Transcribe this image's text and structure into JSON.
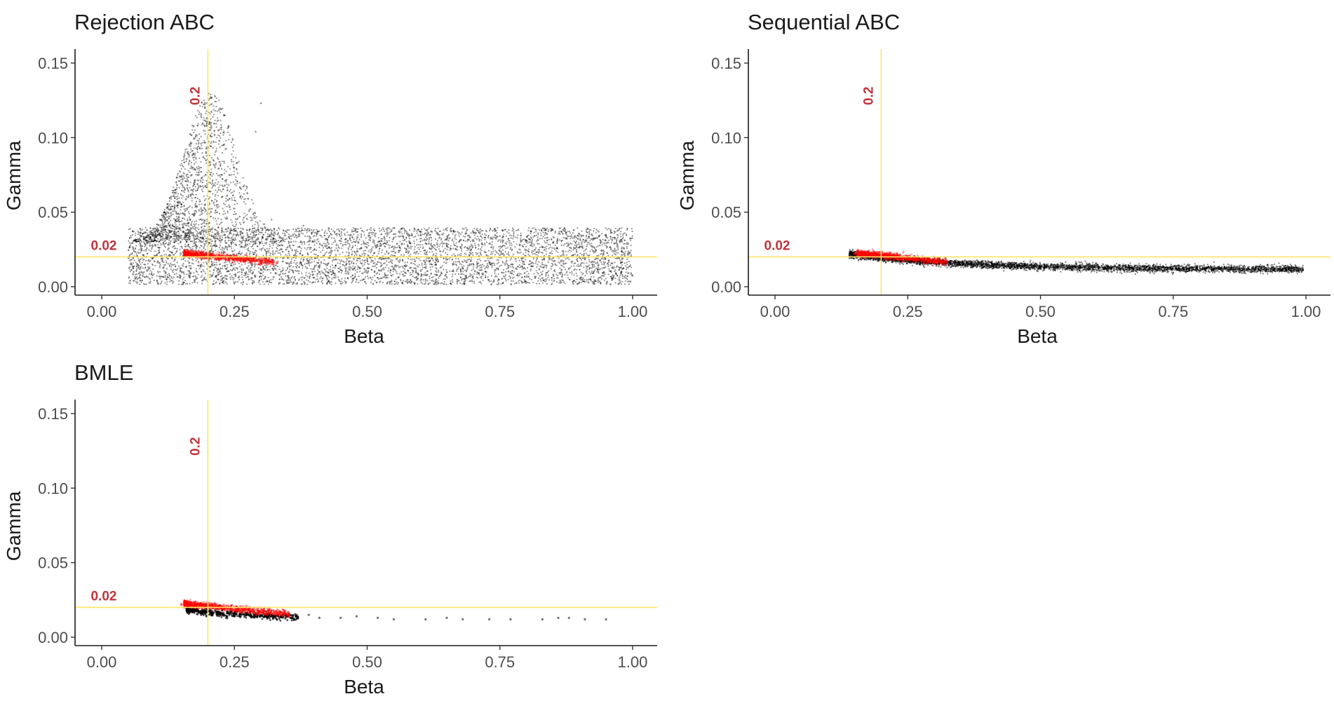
{
  "figure": {
    "colors": {
      "reference_line": "#FFE566",
      "reference_label": "#C0343B",
      "sample_points": "#000000",
      "highlight_points": "#FF0000"
    }
  },
  "chart_data": [
    {
      "type": "scatter",
      "title": "Rejection ABC",
      "xlabel": "Beta",
      "ylabel": "Gamma",
      "xlim": [
        0.0,
        1.0
      ],
      "ylim": [
        0.0,
        0.15
      ],
      "xticks": [
        "0.00",
        "0.25",
        "0.50",
        "0.75",
        "1.00"
      ],
      "yticks": [
        "0.00",
        "0.05",
        "0.10",
        "0.15"
      ],
      "grid": false,
      "reference_lines": {
        "x": 0.2,
        "x_label": "0.2",
        "y": 0.02,
        "y_label": "0.02"
      },
      "series": [
        {
          "role": "background",
          "color": "#000000",
          "points": [
            [
              0.06,
              0.004
            ],
            [
              0.08,
              0.015
            ],
            [
              0.1,
              0.028
            ],
            [
              0.11,
              0.045
            ],
            [
              0.13,
              0.06
            ],
            [
              0.15,
              0.055
            ],
            [
              0.17,
              0.08
            ],
            [
              0.18,
              0.092
            ],
            [
              0.19,
              0.07
            ],
            [
              0.2,
              0.1
            ],
            [
              0.21,
              0.085
            ],
            [
              0.22,
              0.065
            ],
            [
              0.23,
              0.095
            ],
            [
              0.24,
              0.075
            ],
            [
              0.25,
              0.058
            ],
            [
              0.26,
              0.047
            ],
            [
              0.28,
              0.052
            ],
            [
              0.29,
              0.104
            ],
            [
              0.3,
              0.123
            ],
            [
              0.32,
              0.045
            ],
            [
              0.35,
              0.038
            ],
            [
              0.38,
              0.041
            ],
            [
              0.42,
              0.036
            ],
            [
              0.46,
              0.032
            ],
            [
              0.5,
              0.038
            ],
            [
              0.55,
              0.033
            ],
            [
              0.6,
              0.037
            ],
            [
              0.65,
              0.029
            ],
            [
              0.7,
              0.036
            ],
            [
              0.75,
              0.034
            ],
            [
              0.8,
              0.031
            ],
            [
              0.85,
              0.038
            ],
            [
              0.9,
              0.027
            ],
            [
              0.95,
              0.035
            ],
            [
              0.99,
              0.039
            ],
            [
              0.12,
              0.01
            ],
            [
              0.16,
              0.03
            ],
            [
              0.22,
              0.04
            ],
            [
              0.31,
              0.022
            ],
            [
              0.4,
              0.012
            ],
            [
              0.52,
              0.006
            ],
            [
              0.63,
              0.015
            ],
            [
              0.71,
              0.009
            ],
            [
              0.83,
              0.018
            ],
            [
              0.92,
              0.005
            ],
            [
              0.98,
              0.012
            ]
          ],
          "distribution": "uniform band over Beta 0.05-1.00, Gamma 0.00-0.04, with a plume up to about 0.10 near Beta 0.15-0.30"
        },
        {
          "role": "highlight",
          "color": "#FF0000",
          "points": [
            [
              0.16,
              0.023
            ],
            [
              0.18,
              0.022
            ],
            [
              0.2,
              0.021
            ],
            [
              0.22,
              0.019
            ],
            [
              0.24,
              0.018
            ],
            [
              0.27,
              0.017
            ],
            [
              0.3,
              0.016
            ],
            [
              0.33,
              0.016
            ]
          ]
        }
      ]
    },
    {
      "type": "scatter",
      "title": "Sequential ABC",
      "xlabel": "Beta",
      "ylabel": "Gamma",
      "xlim": [
        0.0,
        1.0
      ],
      "ylim": [
        0.0,
        0.15
      ],
      "xticks": [
        "0.00",
        "0.25",
        "0.50",
        "0.75",
        "1.00"
      ],
      "yticks": [
        "0.00",
        "0.05",
        "0.10",
        "0.15"
      ],
      "grid": false,
      "reference_lines": {
        "x": 0.2,
        "x_label": "0.2",
        "y": 0.02,
        "y_label": "0.02"
      },
      "series": [
        {
          "role": "background",
          "color": "#000000",
          "points": [
            [
              0.14,
              0.021
            ],
            [
              0.2,
              0.019
            ],
            [
              0.3,
              0.0165
            ],
            [
              0.4,
              0.015
            ],
            [
              0.5,
              0.014
            ],
            [
              0.6,
              0.0135
            ],
            [
              0.7,
              0.013
            ],
            [
              0.8,
              0.0125
            ],
            [
              0.9,
              0.012
            ],
            [
              0.99,
              0.012
            ]
          ]
        },
        {
          "role": "highlight",
          "color": "#FF0000",
          "points": [
            [
              0.15,
              0.022
            ],
            [
              0.17,
              0.0215
            ],
            [
              0.19,
              0.021
            ],
            [
              0.21,
              0.02
            ],
            [
              0.23,
              0.019
            ],
            [
              0.26,
              0.018
            ],
            [
              0.29,
              0.017
            ]
          ]
        }
      ]
    },
    {
      "type": "scatter",
      "title": "BMLE",
      "xlabel": "Beta",
      "ylabel": "Gamma",
      "xlim": [
        0.0,
        1.0
      ],
      "ylim": [
        0.0,
        0.15
      ],
      "xticks": [
        "0.00",
        "0.25",
        "0.50",
        "0.75",
        "1.00"
      ],
      "yticks": [
        "0.00",
        "0.05",
        "0.10",
        "0.15"
      ],
      "grid": false,
      "reference_lines": {
        "x": 0.2,
        "x_label": "0.2",
        "y": 0.02,
        "y_label": "0.02"
      },
      "series": [
        {
          "role": "background",
          "color": "#000000",
          "points": [
            [
              0.16,
              0.019
            ],
            [
              0.17,
              0.018
            ],
            [
              0.18,
              0.018
            ],
            [
              0.19,
              0.017
            ],
            [
              0.2,
              0.017
            ],
            [
              0.21,
              0.016
            ],
            [
              0.22,
              0.017
            ],
            [
              0.23,
              0.016
            ],
            [
              0.24,
              0.016
            ],
            [
              0.25,
              0.015
            ],
            [
              0.26,
              0.016
            ],
            [
              0.27,
              0.015
            ],
            [
              0.28,
              0.015
            ],
            [
              0.29,
              0.014
            ],
            [
              0.3,
              0.015
            ],
            [
              0.31,
              0.014
            ],
            [
              0.32,
              0.015
            ],
            [
              0.34,
              0.014
            ],
            [
              0.36,
              0.013
            ],
            [
              0.39,
              0.015
            ],
            [
              0.41,
              0.013
            ],
            [
              0.45,
              0.013
            ],
            [
              0.48,
              0.014
            ],
            [
              0.52,
              0.013
            ],
            [
              0.55,
              0.012
            ],
            [
              0.61,
              0.012
            ],
            [
              0.65,
              0.013
            ],
            [
              0.68,
              0.012
            ],
            [
              0.73,
              0.012
            ],
            [
              0.77,
              0.012
            ],
            [
              0.83,
              0.012
            ],
            [
              0.86,
              0.013
            ],
            [
              0.88,
              0.013
            ],
            [
              0.91,
              0.012
            ],
            [
              0.95,
              0.012
            ]
          ]
        },
        {
          "role": "highlight",
          "color": "#FF0000",
          "points": [
            [
              0.15,
              0.022
            ],
            [
              0.17,
              0.022
            ],
            [
              0.19,
              0.021
            ],
            [
              0.21,
              0.02
            ],
            [
              0.23,
              0.019
            ],
            [
              0.25,
              0.018
            ],
            [
              0.28,
              0.017
            ],
            [
              0.31,
              0.016
            ],
            [
              0.35,
              0.015
            ]
          ]
        }
      ]
    }
  ]
}
